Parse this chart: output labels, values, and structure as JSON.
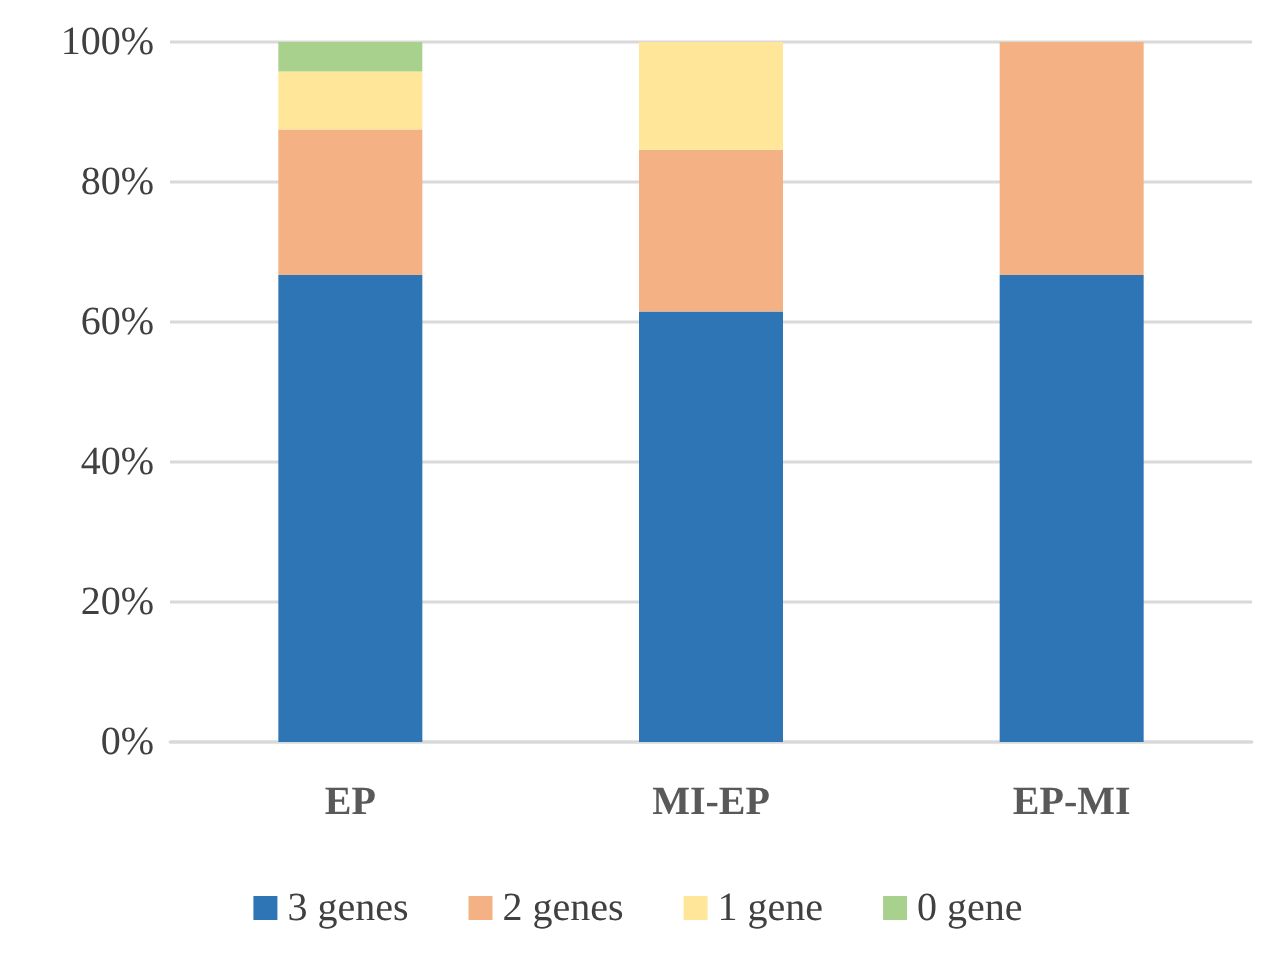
{
  "chart_data": {
    "type": "bar",
    "stacked": true,
    "categories": [
      "EP",
      "MI-EP",
      "EP-MI"
    ],
    "series": [
      {
        "name": "3 genes",
        "color": "#2e75b6",
        "values": [
          66.7,
          61.5,
          66.7
        ]
      },
      {
        "name": "2 genes",
        "color": "#f4b183",
        "values": [
          20.8,
          23.1,
          33.3
        ]
      },
      {
        "name": "1 gene",
        "color": "#ffe699",
        "values": [
          8.3,
          15.4,
          0
        ]
      },
      {
        "name": "0 gene",
        "color": "#a9d18e",
        "values": [
          4.2,
          0,
          0
        ]
      }
    ],
    "ylim": [
      0,
      100
    ],
    "yticks": [
      {
        "value": 0,
        "label": "0%"
      },
      {
        "value": 20,
        "label": "20%"
      },
      {
        "value": 40,
        "label": "40%"
      },
      {
        "value": 60,
        "label": "60%"
      },
      {
        "value": 80,
        "label": "80%"
      },
      {
        "value": 100,
        "label": "100%"
      }
    ],
    "grid": "y",
    "legend": "bottom"
  }
}
